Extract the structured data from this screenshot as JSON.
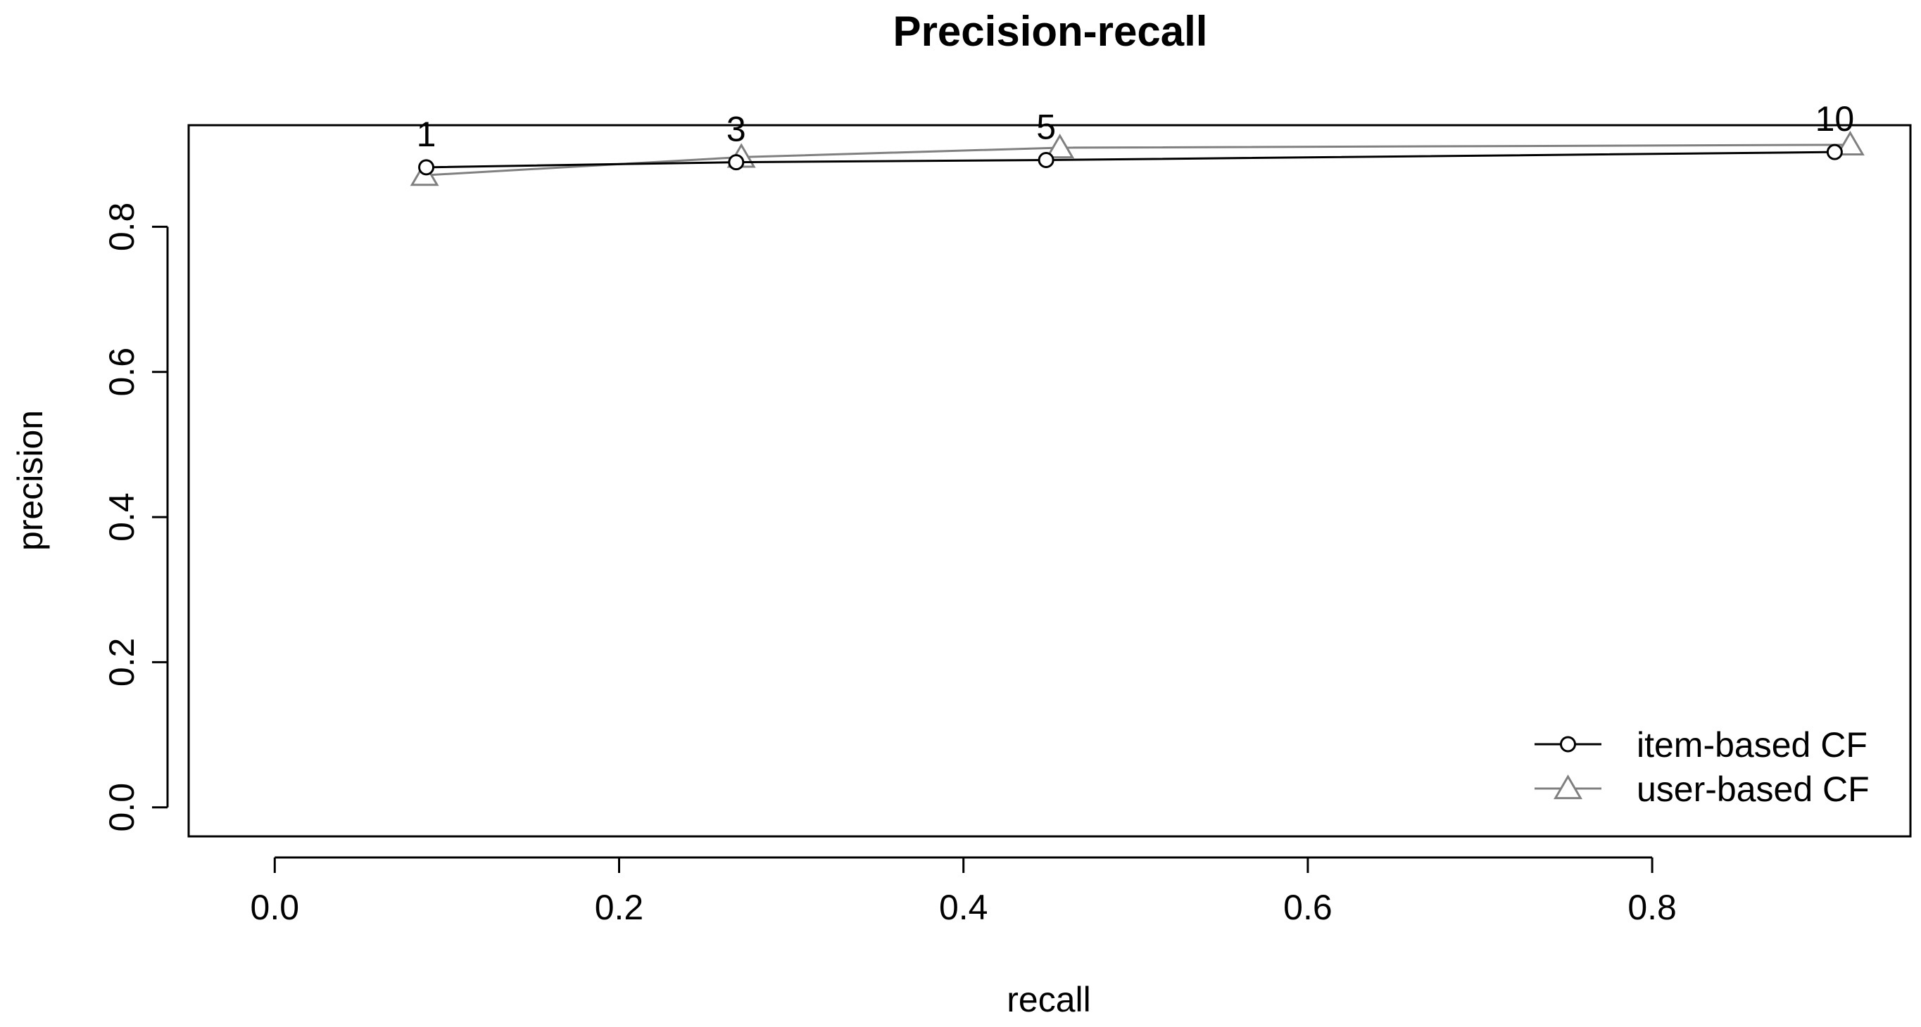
{
  "chart_data": {
    "type": "line",
    "title": "Precision-recall",
    "xlabel": "recall",
    "ylabel": "precision",
    "xlim": [
      -0.05,
      0.95
    ],
    "ylim": [
      -0.04,
      0.94
    ],
    "x_ticks": [
      0.0,
      0.2,
      0.4,
      0.6,
      0.8
    ],
    "x_tick_labels": [
      "0.0",
      "0.2",
      "0.4",
      "0.6",
      "0.8"
    ],
    "y_ticks": [
      0.0,
      0.2,
      0.4,
      0.6,
      0.8
    ],
    "y_tick_labels": [
      "0.0",
      "0.2",
      "0.4",
      "0.6",
      "0.8"
    ],
    "grid": false,
    "legend_position": "bottom-right",
    "point_labels": [
      "1",
      "3",
      "5",
      "10"
    ],
    "series": [
      {
        "name": "item-based CF",
        "marker": "circle",
        "color": "#000000",
        "x": [
          0.088,
          0.268,
          0.448,
          0.906
        ],
        "y": [
          0.882,
          0.889,
          0.892,
          0.903
        ]
      },
      {
        "name": "user-based CF",
        "marker": "triangle",
        "color": "#808080",
        "x": [
          0.087,
          0.271,
          0.456,
          0.915
        ],
        "y": [
          0.871,
          0.896,
          0.909,
          0.913
        ]
      }
    ]
  }
}
